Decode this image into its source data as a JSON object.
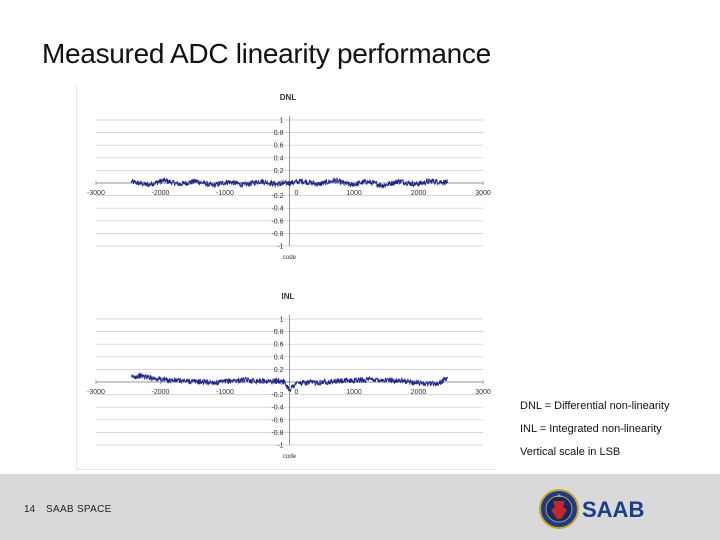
{
  "slide": {
    "title": "Measured ADC linearity performance",
    "page_number": "14",
    "footer_text": "SAAB SPACE",
    "logo_text": "SAAB",
    "notes": [
      "DNL = Differential non-linearity",
      "INL = Integrated non-linearity",
      "Vertical scale in LSB"
    ]
  },
  "colors": {
    "series": "#1f2a8a",
    "grid": "#c8c8c8",
    "axis": "#7f7f7f",
    "footer": "#d9d9d9",
    "logo_blue": "#1a3c8c"
  },
  "chart_data": [
    {
      "type": "line",
      "title": "DNL",
      "xlabel": "code",
      "ylabel": "",
      "xlim": [
        -3000,
        3000
      ],
      "ylim": [
        -1,
        1
      ],
      "x_ticks": [
        -3000,
        -2000,
        -1000,
        0,
        1000,
        2000,
        3000
      ],
      "y_ticks": [
        1,
        0.8,
        0.6,
        0.4,
        0.2,
        0,
        -0.2,
        -0.4,
        -0.6,
        -0.8,
        -1
      ],
      "y_tick_labels": [
        "1",
        "0.8",
        "0.6",
        "0.4",
        "0.2",
        "0",
        "-0.2",
        "-0.4",
        "-0.6",
        "-0.8",
        "-1"
      ],
      "x_tick_labels": [
        "-3000",
        "-2000",
        "-1000",
        "0",
        "1000",
        "2000",
        "3000"
      ],
      "grid": true,
      "series": [
        {
          "x": [
            -2450,
            -2200,
            -1950,
            -1700,
            -1450,
            -1200,
            -950,
            -700,
            -450,
            -200,
            0,
            200,
            450,
            700,
            950,
            1200,
            1450,
            1700,
            1950,
            2200,
            2450
          ],
          "values": [
            0.02,
            -0.03,
            0.04,
            -0.02,
            0.03,
            -0.04,
            0.02,
            -0.03,
            0.03,
            -0.02,
            0.0,
            0.03,
            -0.02,
            0.04,
            -0.03,
            0.02,
            -0.04,
            0.03,
            -0.02,
            0.03,
            0.01
          ]
        }
      ]
    },
    {
      "type": "line",
      "title": "INL",
      "xlabel": "code",
      "ylabel": "",
      "xlim": [
        -3000,
        3000
      ],
      "ylim": [
        -1,
        1
      ],
      "x_ticks": [
        -3000,
        -2000,
        -1000,
        0,
        1000,
        2000,
        3000
      ],
      "y_ticks": [
        1,
        0.8,
        0.6,
        0.4,
        0.2,
        0,
        -0.2,
        -0.4,
        -0.6,
        -0.8,
        -1
      ],
      "y_tick_labels": [
        "1",
        "0.8",
        "0.6",
        "0.4",
        "0.2",
        "0",
        "-0.2",
        "-0.4",
        "-0.6",
        "-0.8",
        "-1"
      ],
      "x_tick_labels": [
        "-3000",
        "-2000",
        "-1000",
        "0",
        "1000",
        "2000",
        "3000"
      ],
      "grid": true,
      "series": [
        {
          "x": [
            -2450,
            -2300,
            -2100,
            -1900,
            -1700,
            -1500,
            -1300,
            -1100,
            -900,
            -700,
            -500,
            -300,
            -100,
            0,
            100,
            300,
            500,
            700,
            900,
            1100,
            1300,
            1500,
            1700,
            1900,
            2100,
            2300,
            2450
          ],
          "values": [
            0.08,
            0.1,
            0.06,
            0.03,
            0.02,
            0.01,
            0.0,
            -0.01,
            0.02,
            0.03,
            0.02,
            0.01,
            0.02,
            -0.12,
            -0.02,
            -0.01,
            0.0,
            0.01,
            0.02,
            0.03,
            0.04,
            0.03,
            0.02,
            0.0,
            -0.02,
            -0.03,
            0.07
          ]
        }
      ]
    }
  ]
}
